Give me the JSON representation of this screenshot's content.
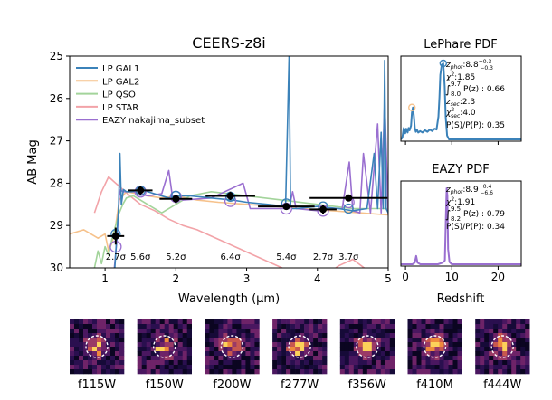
{
  "figure": {
    "colors": {
      "gal1": "#3b82b9",
      "gal2": "#f6c28c",
      "qso": "#a3d49b",
      "star": "#f2a3a8",
      "eazy": "#9a6fd0"
    }
  },
  "chart_data": [
    {
      "type": "line",
      "title": "CEERS-z8i",
      "xlabel": "Wavelength (µm)",
      "ylabel": "AB Mag",
      "xlim": [
        0.5,
        5.0
      ],
      "ylim": [
        30,
        25
      ],
      "xticks": [
        "1",
        "2",
        "3",
        "4",
        "5"
      ],
      "yticks": [
        "25",
        "26",
        "27",
        "28",
        "29",
        "30"
      ],
      "legend_position": "top-left",
      "legend": [
        "LP GAL1",
        "LP GAL2",
        "LP QSO",
        "LP STAR",
        "EAZY nakajima_subset"
      ],
      "series": [
        {
          "name": "LP GAL1",
          "color_key": "gal1",
          "x": [
            0.9,
            1.05,
            1.13,
            1.16,
            1.19,
            1.21,
            1.23,
            1.26,
            1.3,
            1.38,
            1.5,
            1.7,
            1.9,
            2.0,
            2.2,
            2.5,
            2.8,
            3.0,
            3.3,
            3.55,
            3.6,
            3.62,
            3.64,
            3.7,
            4.0,
            4.3,
            4.5,
            4.7,
            4.8,
            4.85,
            4.9,
            4.93,
            4.95,
            4.97,
            5.0
          ],
          "y": [
            30.2,
            30.2,
            30.2,
            29.4,
            28.6,
            27.3,
            28.5,
            28.15,
            28.2,
            28.2,
            28.15,
            28.25,
            28.35,
            28.3,
            28.3,
            28.35,
            28.4,
            28.45,
            28.5,
            28.55,
            25.0,
            28.5,
            28.6,
            28.6,
            28.55,
            28.6,
            28.65,
            28.6,
            27.3,
            28.6,
            26.8,
            28.6,
            25.1,
            28.6,
            28.7
          ]
        },
        {
          "name": "LP GAL2",
          "color_key": "gal2",
          "x": [
            0.5,
            0.7,
            0.9,
            1.0,
            1.05,
            1.1,
            1.15,
            1.2,
            1.3,
            1.45,
            1.6,
            1.8,
            2.0,
            2.3,
            2.6,
            3.0,
            3.4,
            3.8,
            4.2,
            4.6,
            5.0
          ],
          "y": [
            29.2,
            29.1,
            29.3,
            29.2,
            29.6,
            29.4,
            29.0,
            28.4,
            28.2,
            28.25,
            28.3,
            28.35,
            28.3,
            28.4,
            28.45,
            28.5,
            28.55,
            28.6,
            28.65,
            28.7,
            28.75
          ]
        },
        {
          "name": "LP QSO",
          "color_key": "qso",
          "x": [
            0.85,
            0.9,
            0.95,
            1.0,
            1.05,
            1.1,
            1.15,
            1.2,
            1.25,
            1.3,
            1.4,
            1.5,
            1.6,
            1.8,
            2.0,
            2.2,
            2.5,
            3.0,
            3.5,
            4.0,
            4.5,
            5.0
          ],
          "y": [
            30.0,
            29.6,
            29.9,
            29.5,
            29.7,
            29.3,
            29.0,
            28.7,
            28.5,
            28.35,
            28.3,
            28.4,
            28.5,
            28.7,
            28.5,
            28.3,
            28.2,
            28.3,
            28.4,
            28.5,
            28.6,
            28.6
          ]
        },
        {
          "name": "LP STAR",
          "color_key": "star",
          "x": [
            0.85,
            0.95,
            1.05,
            1.15,
            1.25,
            1.35,
            1.5,
            1.7,
            1.9,
            2.1,
            2.3,
            2.5,
            2.7,
            2.9,
            3.1,
            3.3,
            3.5,
            3.7,
            3.9,
            4.1,
            4.3,
            4.5,
            4.7
          ],
          "y": [
            28.7,
            28.2,
            27.85,
            28.0,
            28.15,
            28.3,
            28.5,
            28.65,
            28.85,
            29.0,
            29.1,
            29.25,
            29.4,
            29.55,
            29.7,
            29.85,
            30.0,
            30.2,
            30.2,
            30.2,
            29.95,
            29.8,
            30.05
          ]
        },
        {
          "name": "EAZY nakajima_subset",
          "color_key": "eazy",
          "x": [
            1.0,
            1.12,
            1.17,
            1.2,
            1.22,
            1.25,
            1.4,
            1.6,
            1.8,
            1.9,
            1.95,
            2.1,
            2.5,
            2.95,
            3.05,
            3.3,
            3.6,
            3.65,
            3.7,
            4.0,
            4.2,
            4.35,
            4.45,
            4.5,
            4.6,
            4.65,
            4.75,
            4.85,
            4.9,
            4.95,
            5.0
          ],
          "y": [
            30.2,
            30.2,
            29.3,
            28.3,
            28.15,
            28.2,
            28.2,
            28.3,
            28.25,
            27.7,
            28.3,
            28.4,
            28.35,
            28.0,
            28.6,
            28.6,
            28.6,
            28.2,
            28.6,
            28.65,
            28.6,
            28.6,
            27.5,
            28.65,
            28.7,
            27.3,
            28.7,
            26.6,
            28.7,
            26.0,
            28.75
          ]
        }
      ],
      "photometry": {
        "x": [
          1.15,
          1.5,
          2.0,
          2.77,
          3.56,
          4.08,
          4.44
        ],
        "y": [
          29.25,
          28.17,
          28.37,
          28.3,
          28.55,
          28.62,
          28.35
        ],
        "xerr": [
          0.12,
          0.17,
          0.23,
          0.35,
          0.4,
          0.19,
          0.55
        ],
        "yerr": [
          0.2,
          0.1,
          0.1,
          0.1,
          0.06,
          0.1,
          0.06
        ]
      },
      "model_bands_lp": {
        "x": [
          1.15,
          1.5,
          2.0,
          2.77,
          3.56,
          4.08,
          4.44
        ],
        "y": [
          29.2,
          28.18,
          28.3,
          28.32,
          28.48,
          28.55,
          28.6
        ]
      },
      "model_bands_eazy": {
        "x": [
          1.15,
          1.5,
          2.0,
          2.77,
          3.56,
          4.08,
          4.44
        ],
        "y": [
          29.5,
          28.2,
          28.32,
          28.42,
          28.6,
          28.65,
          28.45
        ]
      },
      "significance_labels": [
        {
          "x": 1.15,
          "text": "2.7σ"
        },
        {
          "x": 1.5,
          "text": "5.6σ"
        },
        {
          "x": 2.0,
          "text": "5.2σ"
        },
        {
          "x": 2.77,
          "text": "6.4σ"
        },
        {
          "x": 3.56,
          "text": "5.4σ"
        },
        {
          "x": 4.08,
          "text": "2.7σ"
        },
        {
          "x": 4.44,
          "text": "3.7σ"
        }
      ]
    },
    {
      "type": "line",
      "title": "LePhare PDF",
      "xlim": [
        0,
        25
      ],
      "ylim": [
        0,
        1
      ],
      "color_key": "gal1",
      "x": [
        0,
        0.3,
        0.6,
        0.9,
        1.1,
        1.4,
        1.6,
        1.8,
        2.1,
        2.3,
        2.5,
        2.7,
        2.9,
        3.1,
        3.3,
        3.6,
        4.0,
        4.5,
        5.0,
        5.5,
        6.0,
        6.5,
        7.0,
        7.4,
        7.8,
        8.0,
        8.2,
        8.5,
        8.8,
        9.1,
        9.3,
        9.6,
        10.0,
        12.0,
        15.0,
        20.0,
        25.0
      ],
      "y": [
        0.0,
        0.02,
        0.15,
        0.08,
        0.14,
        0.09,
        0.15,
        0.12,
        0.18,
        0.35,
        0.42,
        0.3,
        0.15,
        0.1,
        0.13,
        0.09,
        0.11,
        0.09,
        0.12,
        0.1,
        0.13,
        0.11,
        0.14,
        0.13,
        0.3,
        0.55,
        0.85,
        0.98,
        1.0,
        0.7,
        0.3,
        0.05,
        0.0,
        0.0,
        0.0,
        0.0,
        0.0
      ],
      "peak_markers": [
        {
          "x": 8.8,
          "y": 1.0,
          "color_key": "gal1"
        },
        {
          "x": 2.3,
          "y": 0.42,
          "color_key": "gal2"
        }
      ],
      "annotation": [
        {
          "type": "zphot",
          "label": "z",
          "sub": "phot",
          "value": ":8.8",
          "sup": "+0.3",
          "inf": "−0.3"
        },
        {
          "type": "chi2",
          "label": "χ",
          "sup": "2",
          "value": ":1.85"
        },
        {
          "type": "integral",
          "upper": "9.7",
          "lower": "8.0",
          "body": "P(z) : 0.66"
        },
        {
          "type": "plain",
          "label": "z",
          "sub": "sec",
          "value": ":2.3"
        },
        {
          "type": "chi2sec",
          "label": "χ",
          "sup": "2",
          "sub": "sec",
          "value": ":4.0"
        },
        {
          "type": "text",
          "text": "P(S)/P(P): 0.35"
        }
      ]
    },
    {
      "type": "line",
      "title": "EAZY PDF",
      "xlabel": "Redshift",
      "xlim": [
        -1,
        25
      ],
      "ylim": [
        0,
        1
      ],
      "xticks": [
        "0",
        "10",
        "20"
      ],
      "color_key": "eazy",
      "x": [
        -1,
        0,
        1.5,
        2.0,
        2.3,
        2.6,
        3.2,
        5,
        7,
        8.0,
        8.5,
        8.8,
        8.9,
        9.05,
        9.2,
        9.5,
        10,
        15,
        20,
        25
      ],
      "y": [
        0,
        0,
        0,
        0.02,
        0.11,
        0.02,
        0,
        0,
        0,
        0.02,
        0.05,
        0.8,
        1.0,
        0.9,
        0.2,
        0.03,
        0,
        0,
        0,
        0
      ],
      "annotation": [
        {
          "type": "zphot",
          "label": "z",
          "sub": "phot",
          "value": ":8.9",
          "sup": "+0.4",
          "inf": "−6.6"
        },
        {
          "type": "chi2",
          "label": "χ",
          "sup": "2",
          "value": ":1.91"
        },
        {
          "type": "integral",
          "upper": "9.5",
          "lower": "8.2",
          "body": "P(z) : 0.79"
        },
        {
          "type": "text",
          "text": "P(S)/P(P): 0.34"
        }
      ]
    }
  ],
  "cutouts": [
    {
      "label": "f115W"
    },
    {
      "label": "f150W"
    },
    {
      "label": "f200W"
    },
    {
      "label": "f277W"
    },
    {
      "label": "f356W"
    },
    {
      "label": "f410M"
    },
    {
      "label": "f444W"
    }
  ]
}
